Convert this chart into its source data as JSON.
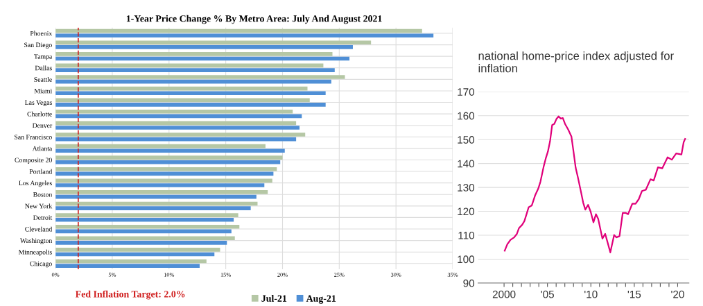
{
  "chart_data": [
    {
      "type": "bar",
      "orientation": "horizontal",
      "title": "1-Year Price Change % By Metro Area: July And August 2021",
      "categories": [
        "Phoenix",
        "San Diego",
        "Tampa",
        "Dallas",
        "Seattle",
        "Miami",
        "Las Vegas",
        "Charlotte",
        "Denver",
        "San Francisco",
        "Atlanta",
        "Composite 20",
        "Portland",
        "Los Angeles",
        "Boston",
        "New York",
        "Detroit",
        "Cleveland",
        "Washington",
        "Minneapolis",
        "Chicago"
      ],
      "series": [
        {
          "name": "Jul-21",
          "color": "#b5c7a5",
          "values": [
            32.3,
            27.8,
            24.4,
            23.6,
            25.5,
            22.2,
            22.4,
            20.9,
            21.2,
            22.0,
            18.5,
            20.0,
            19.5,
            19.1,
            18.7,
            17.8,
            16.1,
            16.2,
            15.8,
            14.5,
            13.3
          ]
        },
        {
          "name": "Aug-21",
          "color": "#4f8fd6",
          "values": [
            33.3,
            26.2,
            25.9,
            24.6,
            24.3,
            23.8,
            23.8,
            21.7,
            21.5,
            21.2,
            20.2,
            19.8,
            19.2,
            18.4,
            17.7,
            17.2,
            15.7,
            15.5,
            15.1,
            14.0,
            12.7
          ]
        }
      ],
      "xlim": [
        0,
        35
      ],
      "xticks": [
        {
          "value": 0,
          "label": "0%"
        },
        {
          "value": 5,
          "label": "5%"
        },
        {
          "value": 10,
          "label": "10%"
        },
        {
          "value": 15,
          "label": "15%"
        },
        {
          "value": 20,
          "label": "20%"
        },
        {
          "value": 25,
          "label": "25%"
        },
        {
          "value": 30,
          "label": "30%"
        },
        {
          "value": 35,
          "label": "35%"
        }
      ],
      "ref_lines": [
        {
          "axis": "x",
          "value": 2.0,
          "label": "Fed Inflation Target: 2.0%",
          "color": "#d02020",
          "line_style": "dashed"
        }
      ],
      "grid": true,
      "legend": "bottom"
    },
    {
      "type": "line",
      "title": "national home-price index adjusted for inflation",
      "series": [
        {
          "color": "#e0007a",
          "x": [
            2000.07,
            2000.37,
            2000.74,
            2001.16,
            2001.48,
            2001.72,
            2002.09,
            2002.34,
            2002.59,
            2002.83,
            2003.2,
            2003.57,
            2003.94,
            2004.19,
            2004.56,
            2004.8,
            2005.05,
            2005.3,
            2005.54,
            2005.79,
            2006.03,
            2006.28,
            2006.53,
            2006.77,
            2007.02,
            2007.39,
            2007.76,
            2008.0,
            2008.25,
            2008.5,
            2008.87,
            2009.11,
            2009.36,
            2009.68,
            2009.98,
            2010.3,
            2010.59,
            2010.84,
            2011.33,
            2011.65,
            2011.95,
            2012.24,
            2012.68,
            2012.93,
            2013.3,
            2013.67,
            2014.04,
            2014.29,
            2014.78,
            2015.15,
            2015.52,
            2015.89,
            2016.33,
            2016.87,
            2017.24,
            2017.73,
            2018.23,
            2018.84,
            2019.33,
            2019.83,
            2020.44,
            2020.69,
            2020.86
          ],
          "values": [
            103.5,
            106.2,
            108.1,
            109.1,
            110.6,
            113.0,
            114.4,
            115.9,
            118.8,
            121.7,
            122.5,
            126.6,
            129.5,
            132.4,
            138.7,
            142.1,
            145.0,
            149.4,
            156.1,
            156.6,
            158.6,
            159.7,
            158.8,
            159.0,
            156.6,
            154.2,
            151.3,
            145.0,
            138.2,
            134.3,
            128.0,
            123.7,
            120.7,
            122.7,
            119.8,
            115.4,
            118.8,
            116.9,
            108.6,
            110.6,
            106.7,
            102.8,
            110.1,
            109.1,
            109.6,
            119.3,
            119.3,
            118.8,
            123.2,
            123.2,
            125.1,
            128.5,
            129.0,
            133.4,
            132.9,
            138.4,
            138.0,
            142.6,
            141.6,
            144.2,
            143.8,
            148.9,
            150.3
          ]
        }
      ],
      "xlim": [
        1997,
        2021.3
      ],
      "xticks": [
        2000,
        {
          "value": 2001,
          "label": null
        },
        {
          "value": 2002,
          "label": null
        },
        {
          "value": 2003,
          "label": null
        },
        {
          "value": 2004,
          "label": null
        },
        {
          "value": 2005,
          "label": "'05"
        },
        {
          "value": 2006,
          "label": null
        },
        {
          "value": 2007,
          "label": null
        },
        {
          "value": 2008,
          "label": null
        },
        {
          "value": 2009,
          "label": null
        },
        {
          "value": 2010,
          "label": "'10"
        },
        {
          "value": 2011,
          "label": null
        },
        {
          "value": 2012,
          "label": null
        },
        {
          "value": 2013,
          "label": null
        },
        {
          "value": 2014,
          "label": null
        },
        {
          "value": 2015,
          "label": "'15"
        },
        {
          "value": 2016,
          "label": null
        },
        {
          "value": 2017,
          "label": null
        },
        {
          "value": 2018,
          "label": null
        },
        {
          "value": 2019,
          "label": null
        },
        {
          "value": 2020,
          "label": "'20"
        }
      ],
      "ylim": [
        90,
        170
      ],
      "yticks": [
        90,
        100,
        110,
        120,
        130,
        140,
        150,
        160,
        170
      ],
      "grid": "y",
      "legend": false,
      "marker": "none",
      "line_style": "solid"
    }
  ]
}
